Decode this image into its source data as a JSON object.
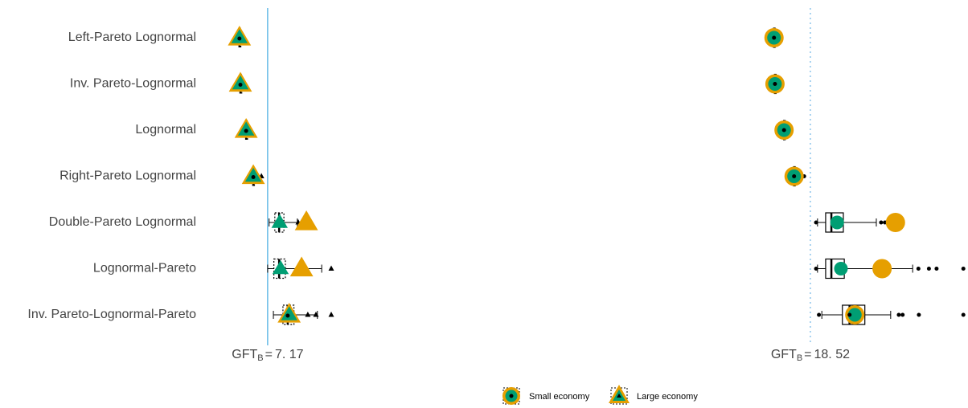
{
  "chart_data": {
    "type": "box",
    "categories": [
      "Left-Pareto Lognormal",
      "Inv. Pareto-Lognormal",
      "Lognormal",
      "Right-Pareto Lognormal",
      "Double-Pareto Lognormal",
      "Lognormal-Pareto",
      "Inv. Pareto-Lognormal-Pareto"
    ],
    "xlim": [
      5.86,
      21.75
    ],
    "series": [
      {
        "name": "Small economy",
        "shape": "circle",
        "color": "#009e73",
        "alt_color": "#e69f00",
        "values": [
          17.76,
          17.78,
          17.97,
          18.18,
          19.08,
          19.16,
          19.45
        ],
        "alt_values": [
          17.76,
          17.78,
          17.97,
          18.18,
          20.3,
          20.02,
          19.45
        ],
        "boxes": [
          [
            17.74,
            17.75,
            17.76,
            17.77,
            17.78
          ],
          [
            17.76,
            17.77,
            17.78,
            17.79,
            17.8
          ],
          [
            17.95,
            17.96,
            17.97,
            17.98,
            17.99
          ],
          [
            18.16,
            18.17,
            18.18,
            18.19,
            18.21
          ],
          [
            18.67,
            18.84,
            18.96,
            19.21,
            19.9
          ],
          [
            18.67,
            18.84,
            18.96,
            19.23,
            20.66
          ],
          [
            18.76,
            19.19,
            19.34,
            19.66,
            20.2
          ]
        ],
        "outliers": [
          [],
          [],
          [],
          [
            18.3,
            18.39
          ],
          [
            18.64,
            20.0,
            20.08,
            20.2
          ],
          [
            18.64,
            20.78,
            21.0,
            21.16,
            21.72
          ],
          [
            18.7,
            20.37,
            20.45,
            20.79,
            21.72
          ]
        ]
      },
      {
        "name": "Large economy",
        "shape": "triangle",
        "color": "#009e73",
        "alt_color": "#e69f00",
        "values": [
          6.58,
          6.6,
          6.72,
          6.87,
          7.42,
          7.44,
          7.62
        ],
        "alt_values": [
          6.58,
          6.6,
          6.72,
          6.87,
          7.98,
          7.88,
          7.62
        ],
        "boxes": [
          [
            6.57,
            6.575,
            6.58,
            6.585,
            6.59
          ],
          [
            6.59,
            6.595,
            6.6,
            6.605,
            6.61
          ],
          [
            6.71,
            6.715,
            6.72,
            6.725,
            6.73
          ],
          [
            6.85,
            6.86,
            6.87,
            6.88,
            6.89
          ],
          [
            7.2,
            7.32,
            7.41,
            7.51,
            7.79
          ],
          [
            7.17,
            7.3,
            7.41,
            7.54,
            8.3
          ],
          [
            7.29,
            7.49,
            7.59,
            7.72,
            8.21
          ]
        ],
        "outliers": [
          [],
          [],
          [],
          [
            6.95,
            7.04
          ],
          [
            7.81,
            7.88,
            7.94
          ],
          [
            8.5
          ],
          [
            8.01,
            8.18,
            8.5
          ]
        ]
      }
    ],
    "ref_prefix": "GFT",
    "ref_sub": "B",
    "ref_eq": "=",
    "reference_lines": [
      {
        "value": 7.17,
        "label": "7. 17",
        "style": "solid",
        "color": "#3fa9e0"
      },
      {
        "value": 18.52,
        "label": "18. 52",
        "style": "dotted",
        "color": "#8cc4ea"
      }
    ]
  }
}
